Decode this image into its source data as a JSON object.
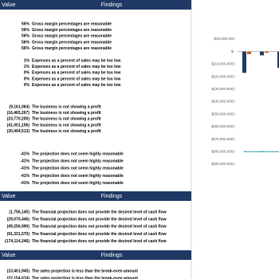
{
  "sections": [
    {
      "header": {
        "value": "Value",
        "findings": "Findings"
      },
      "groups": [
        {
          "rows": [
            [
              "56%",
              "Gross margin percentages are reasonable"
            ],
            [
              "56%",
              "Gross margin percentages are reasonable"
            ],
            [
              "56%",
              "Gross margin percentages are reasonable"
            ],
            [
              "56%",
              "Gross margin percentages are reasonable"
            ],
            [
              "56%",
              "Gross margin percentages are reasonable"
            ]
          ]
        },
        {
          "rows": [
            [
              "1%",
              "Expenses as a percent of sales may be too low"
            ],
            [
              "1%",
              "Expenses as a percent of sales may be too low"
            ],
            [
              "0%",
              "Expenses as a percent of sales may be too low"
            ],
            [
              "0%",
              "Expenses as a percent of sales may be too low"
            ],
            [
              "0%",
              "Expenses as a percent of sales may be too low"
            ]
          ]
        },
        {
          "rows": [
            [
              "(9,161,064)",
              "The business is not showing a profit"
            ],
            [
              "(16,465,267)",
              "The business is not showing a profit"
            ],
            [
              "(23,770,200)",
              "The business is not showing a profit"
            ],
            [
              "(41,001,156)",
              "The business is not showing a profit"
            ],
            [
              "(30,494,513)",
              "The business is not showing a profit"
            ]
          ]
        },
        {
          "rows": [
            [
              "-41%",
              "The projection does not seem highly reasonable"
            ],
            [
              "-41%",
              "The projection does not seem highly reasonable"
            ],
            [
              "-41%",
              "The projection does not seem highly reasonable"
            ],
            [
              "-41%",
              "The projection does not seem highly reasonable"
            ],
            [
              "-41%",
              "The projection does not seem highly reasonable"
            ]
          ]
        }
      ]
    },
    {
      "header": {
        "value": "Value",
        "findings": "Findings"
      },
      "groups": [
        {
          "rows": [
            [
              "(1,756,145)",
              "The financial projection does not provide the desired level of cash flow"
            ],
            [
              "(29,070,446)",
              "The financial projection does not provide the desired level of cash flow"
            ],
            [
              "(49,256,990)",
              "The financial projection does not provide the desired level of cash flow"
            ],
            [
              "(91,331,570)",
              "The financial projection does not provide the desired level of cash flow"
            ],
            [
              "(174,114,246)",
              "The financial projection does not provide the desired level of cash flow"
            ]
          ]
        }
      ]
    },
    {
      "header": {
        "value": "Value",
        "findings": "Findings"
      },
      "groups": [
        {
          "rows": [
            [
              "(10,401,945)",
              "The sales projection is less than the break-even amount"
            ],
            [
              "(22,154,074)",
              "The sales projection is less than the break-even amount"
            ]
          ]
        }
      ]
    }
  ],
  "chart_data": {
    "type": "bar",
    "categories": [
      null,
      null,
      null
    ],
    "ylim": [
      -95000000,
      13000000
    ],
    "yticks": [
      {
        "value": 10000000,
        "label": "$10,000,000"
      },
      {
        "value": 0,
        "label": "$-"
      },
      {
        "value": -10000000,
        "label": "$(10,000,000)"
      },
      {
        "value": -20000000,
        "label": "$(20,000,000)"
      },
      {
        "value": -30000000,
        "label": "$(30,000,000)"
      },
      {
        "value": -40000000,
        "label": "$(40,000,000)"
      },
      {
        "value": -50000000,
        "label": "$(50,000,000)"
      },
      {
        "value": -60000000,
        "label": "$(60,000,000)"
      },
      {
        "value": -70000000,
        "label": "$(70,000,000)"
      },
      {
        "value": -80000000,
        "label": "$(80,000,000)"
      },
      {
        "value": -90000000,
        "label": "$(90,000,000)"
      }
    ],
    "series": [
      {
        "color": "#1f3864",
        "values": [
          -17000000,
          -3000000,
          -13000000
        ]
      },
      {
        "color": "#c55a11",
        "values": [
          -2000000,
          -1000000,
          -3000000
        ]
      }
    ],
    "line": {
      "color": "#2e9ca6",
      "values": [
        -80000000,
        -80000000,
        -80000000
      ]
    }
  }
}
